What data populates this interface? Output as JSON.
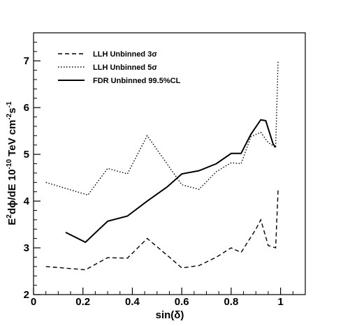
{
  "chart_data": {
    "type": "line",
    "xlabel": "sin(δ)",
    "ylabel_parts": {
      "a": "E",
      "a_sup": "2",
      "b": "dϕ/dE 10",
      "b_sup": "-10",
      "c": " TeV cm",
      "c_sup": "-2",
      "d": "s",
      "d_sup": "-1"
    },
    "xlim": [
      0,
      1.1
    ],
    "ylim": [
      2,
      7.6
    ],
    "x_ticks": [
      0,
      0.2,
      0.4,
      0.6,
      0.8,
      1
    ],
    "x_tick_labels": [
      "0",
      "0.2",
      "0.4",
      "0.6",
      "0.8",
      "1"
    ],
    "y_ticks": [
      2,
      3,
      4,
      5,
      6,
      7
    ],
    "y_tick_labels": [
      "2",
      "3",
      "4",
      "5",
      "6",
      "7"
    ],
    "legend_position": "top-left",
    "grid": false,
    "series": [
      {
        "name": "LLH Unbinned 3σ",
        "style": "dashed",
        "color": "#000000",
        "x": [
          0.05,
          0.21,
          0.3,
          0.38,
          0.46,
          0.55,
          0.6,
          0.67,
          0.74,
          0.8,
          0.84,
          0.9,
          0.92,
          0.95,
          0.98,
          0.99
        ],
        "y": [
          2.6,
          2.53,
          2.79,
          2.78,
          3.2,
          2.8,
          2.57,
          2.62,
          2.8,
          3.0,
          2.9,
          3.4,
          3.6,
          3.05,
          3.0,
          4.25
        ]
      },
      {
        "name": "LLH Unbinned 5σ",
        "style": "dotted",
        "color": "#000000",
        "x": [
          0.05,
          0.22,
          0.3,
          0.38,
          0.46,
          0.54,
          0.6,
          0.67,
          0.74,
          0.8,
          0.84,
          0.88,
          0.92,
          0.95,
          0.98,
          0.99
        ],
        "y": [
          4.4,
          4.13,
          4.7,
          4.58,
          5.4,
          4.8,
          4.35,
          4.25,
          4.63,
          4.82,
          4.8,
          5.38,
          5.47,
          5.25,
          5.15,
          7.0
        ]
      },
      {
        "name": "FDR Unbinned 99.5%CL",
        "style": "solid",
        "color": "#000000",
        "x": [
          0.13,
          0.21,
          0.3,
          0.38,
          0.46,
          0.54,
          0.6,
          0.67,
          0.74,
          0.8,
          0.84,
          0.88,
          0.92,
          0.94,
          0.97,
          0.98
        ],
        "y": [
          3.33,
          3.12,
          3.57,
          3.68,
          4.0,
          4.3,
          4.58,
          4.65,
          4.8,
          5.02,
          5.02,
          5.43,
          5.74,
          5.72,
          5.22,
          5.15
        ]
      }
    ]
  }
}
